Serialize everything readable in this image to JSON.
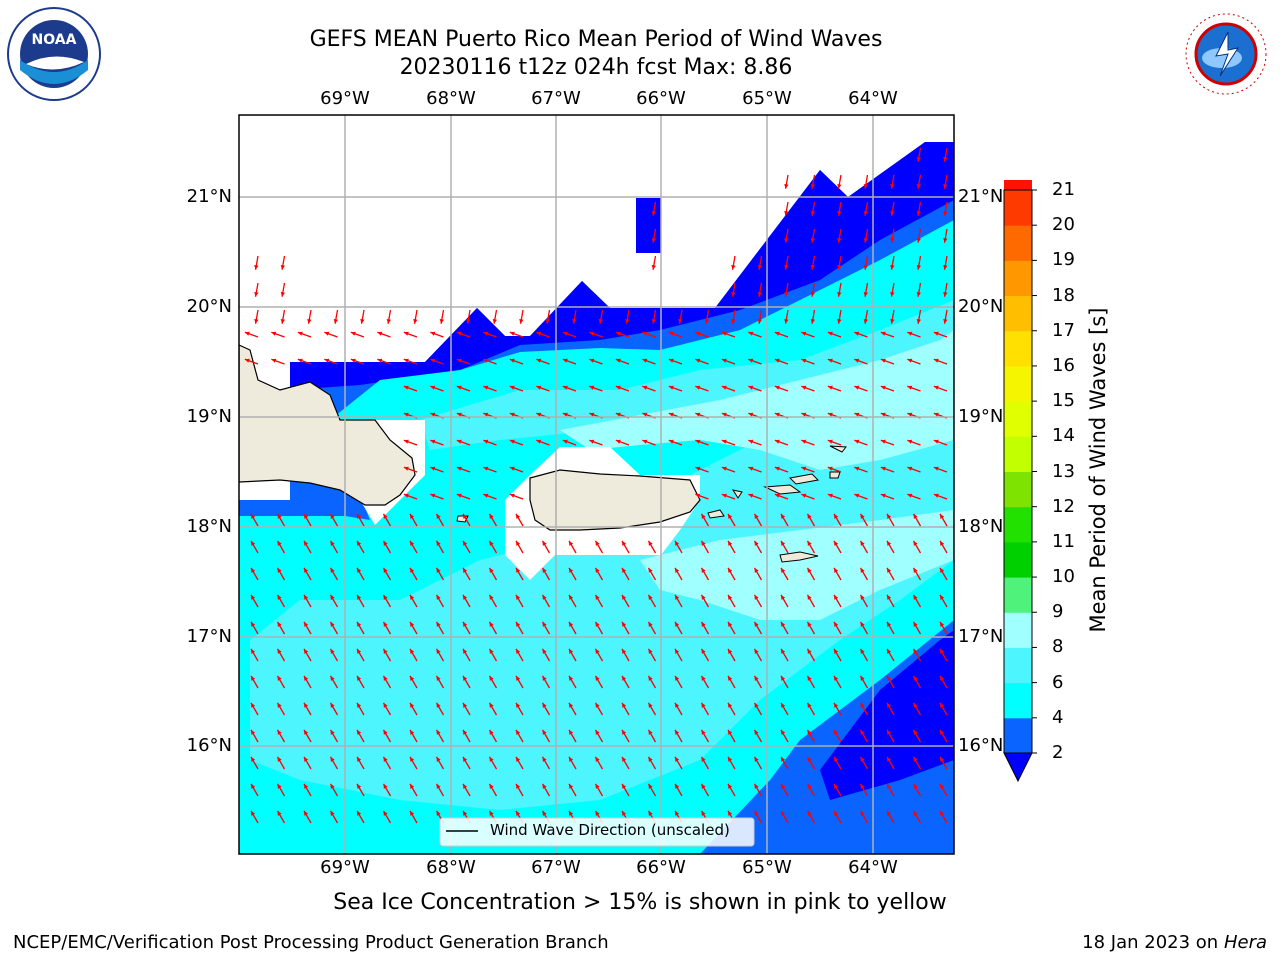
{
  "title": {
    "line1": "GEFS MEAN Puerto Rico Mean Period of Wind Waves",
    "line2": "20230116 t12z 024h fcst   Max: 8.86"
  },
  "map": {
    "lon_ticks": [
      "69°W",
      "68°W",
      "67°W",
      "66°W",
      "65°W",
      "64°W"
    ],
    "lat_ticks": [
      "21°N",
      "20°N",
      "19°N",
      "18°N",
      "17°N",
      "16°N"
    ],
    "legend_label": "Wind Wave Direction (unscaled)",
    "arrow_color": "#ff0000",
    "land_color": "#efebdc"
  },
  "colorbar": {
    "label": "Mean Period of Wind Waves [s]",
    "levels": [
      "2",
      "4",
      "6",
      "8",
      "9",
      "10",
      "11",
      "12",
      "13",
      "14",
      "15",
      "16",
      "17",
      "18",
      "19",
      "20",
      "21"
    ],
    "colors": [
      "#0a64ff",
      "#00ffff",
      "#4df5ff",
      "#a0ffff",
      "#4ff27a",
      "#00d000",
      "#22e000",
      "#7ee300",
      "#c2ff00",
      "#e0ff00",
      "#f5f500",
      "#ffe000",
      "#ffbf00",
      "#ff9800",
      "#ff6a00",
      "#ff3a00",
      "#ff1200"
    ],
    "under_color": "#0000ff"
  },
  "note": "Sea Ice Concentration > 15% is shown in pink to yellow",
  "footer": {
    "left": "NCEP/EMC/Verification Post Processing Product Generation Branch",
    "right_date": "18 Jan 2023 on ",
    "right_host": "Hera"
  },
  "logos": {
    "noaa": "NOAA",
    "nws_text": "NATIONAL WEATHER SERVICE"
  }
}
